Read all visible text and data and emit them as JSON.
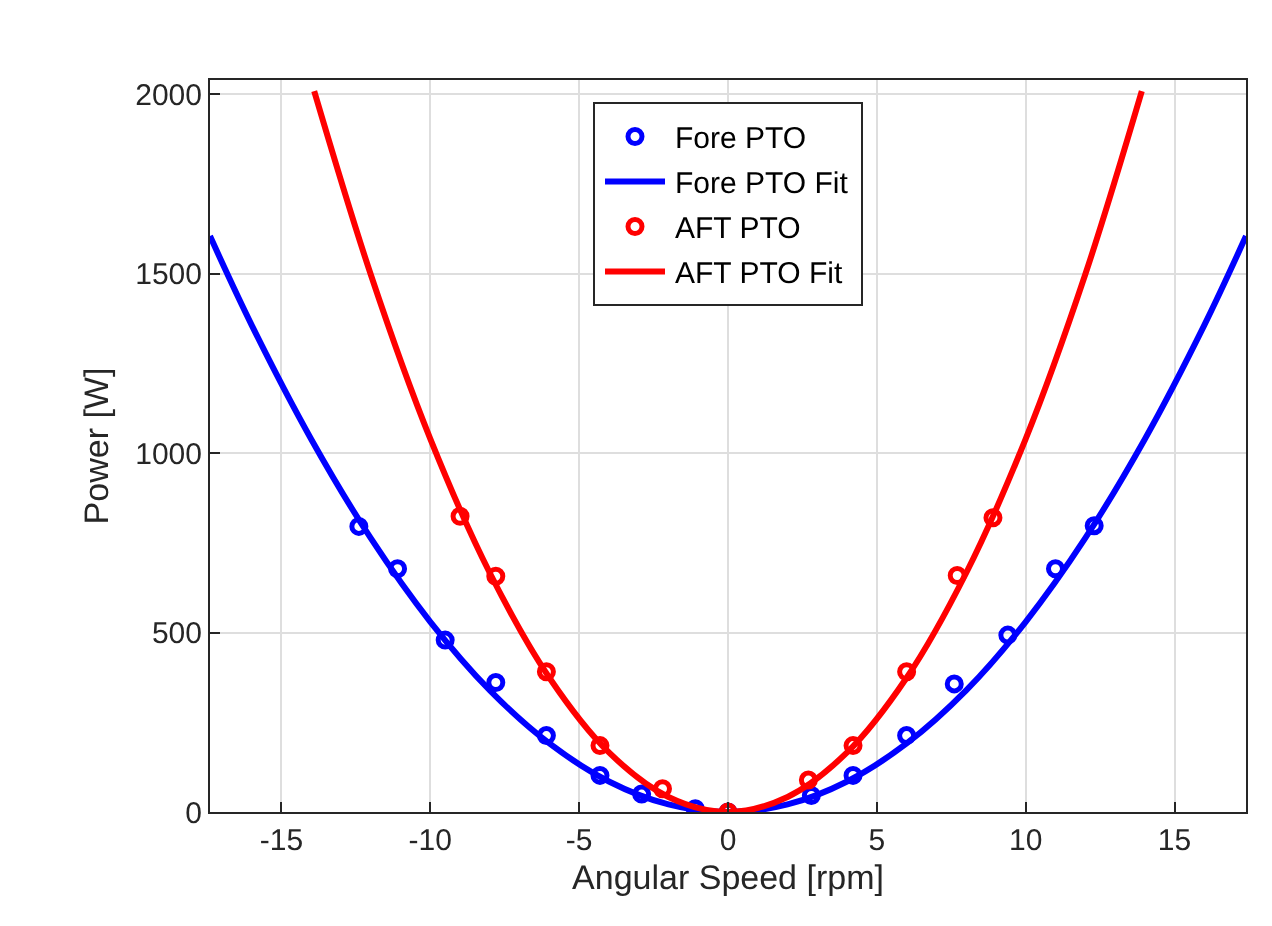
{
  "chart_data": {
    "type": "scatter",
    "xlabel": "Angular Speed [rpm]",
    "ylabel": "Power [W]",
    "xlim": [
      -17.4,
      17.4
    ],
    "ylim": [
      0,
      2040
    ],
    "xticks": [
      -15,
      -10,
      -5,
      0,
      5,
      10,
      15
    ],
    "yticks": [
      0,
      500,
      1000,
      1500,
      2000
    ],
    "grid": true,
    "legend": "top",
    "series": [
      {
        "name": "Fore PTO",
        "marker": "circle",
        "color": "#0000ff",
        "x": [
          -12.4,
          -11.1,
          -9.5,
          -7.8,
          -6.1,
          -4.3,
          -2.9,
          -1.1,
          0,
          2.8,
          4.2,
          6.0,
          7.6,
          9.4,
          11.0,
          12.3
        ],
        "values": [
          796,
          678,
          479,
          361,
          213,
          102,
          50,
          9,
          0,
          46,
          102,
          213,
          357,
          493,
          678,
          798
        ]
      },
      {
        "name": "Fore PTO Fit",
        "type": "line",
        "marker": "none",
        "color": "#0000ff",
        "x": [
          -17.4,
          -16,
          -14,
          -12,
          -10,
          -8,
          -6,
          -4,
          -2,
          0,
          2,
          4,
          6,
          8,
          10,
          12,
          14,
          16,
          17.4
        ],
        "values": [
          1605,
          1357,
          1039,
          763,
          530,
          339,
          191,
          85,
          21,
          0,
          21,
          85,
          191,
          339,
          530,
          763,
          1039,
          1357,
          1605
        ]
      },
      {
        "name": "AFT PTO",
        "marker": "circle",
        "color": "#ff0000",
        "x": [
          -9.0,
          -7.8,
          -6.1,
          -4.3,
          -2.2,
          0,
          2.7,
          4.2,
          6.0,
          7.7,
          8.9
        ],
        "values": [
          824,
          657,
          391,
          185,
          65,
          0,
          89,
          185,
          391,
          659,
          820
        ]
      },
      {
        "name": "AFT PTO Fit",
        "type": "line",
        "marker": "none",
        "color": "#ff0000",
        "x": [
          -13.9,
          -12,
          -10,
          -8,
          -6,
          -4,
          -2,
          0,
          2,
          4,
          6,
          8,
          10,
          12,
          13.9
        ],
        "values": [
          2009,
          1498,
          1040,
          666,
          374,
          166,
          42,
          0,
          42,
          166,
          374,
          666,
          1040,
          1498,
          2009
        ]
      }
    ]
  }
}
